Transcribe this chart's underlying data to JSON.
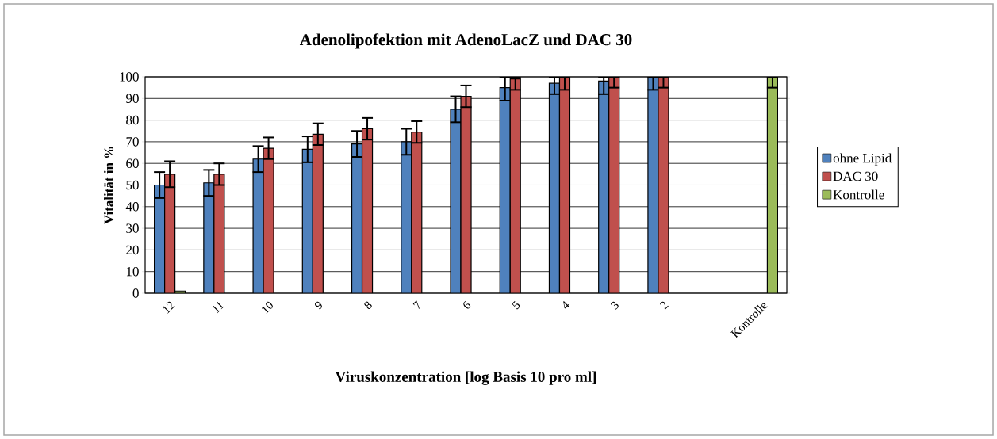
{
  "chart_data": {
    "type": "bar",
    "title": "Adenolipofektion mit AdenoLacZ und DAC 30",
    "xlabel": "Viruskonzentration [log Basis 10 pro ml]",
    "ylabel": "Vitalität in %",
    "categories": [
      "12",
      "11",
      "10",
      "9",
      "8",
      "7",
      "6",
      "5",
      "4",
      "3",
      "2",
      null,
      "Kontrolle"
    ],
    "series": [
      {
        "name": "ohne Lipid",
        "color": "#4f81bd",
        "values": [
          50,
          51,
          62,
          66.5,
          69,
          70,
          85,
          95,
          97,
          98,
          100,
          null,
          null
        ],
        "errors": [
          6,
          6,
          6,
          6,
          6,
          6,
          6,
          [
            89,
            100
          ],
          [
            92,
            100
          ],
          [
            92,
            100
          ],
          [
            94,
            100
          ],
          null,
          null
        ]
      },
      {
        "name": "DAC 30",
        "color": "#c0504d",
        "values": [
          55,
          55,
          67,
          73.5,
          76,
          74.5,
          91,
          99,
          100,
          100,
          100,
          null,
          null
        ],
        "errors": [
          6,
          5,
          5,
          5,
          5,
          5,
          5,
          [
            94,
            100
          ],
          [
            94,
            100
          ],
          [
            95,
            100
          ],
          [
            95,
            100
          ],
          null,
          null
        ]
      },
      {
        "name": "Kontrolle",
        "color": "#9bbb59",
        "values": [
          1,
          null,
          null,
          null,
          null,
          null,
          null,
          null,
          null,
          null,
          null,
          null,
          100
        ],
        "errors": [
          null,
          null,
          null,
          null,
          null,
          null,
          null,
          null,
          null,
          null,
          null,
          null,
          [
            95,
            100
          ]
        ]
      }
    ],
    "ylim": [
      0,
      100
    ],
    "yticks": [
      0,
      10,
      20,
      30,
      40,
      50,
      60,
      70,
      80,
      90,
      100
    ],
    "grid": "y",
    "legend": "right"
  }
}
